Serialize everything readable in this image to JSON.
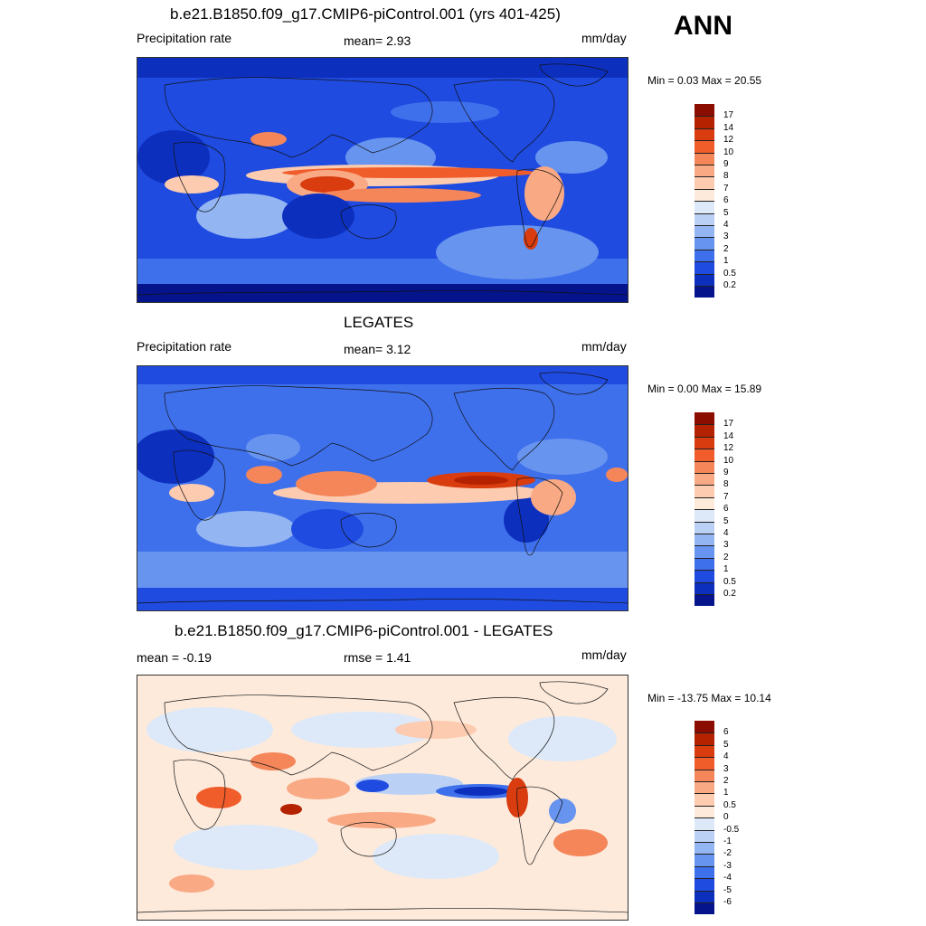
{
  "season": "ANN",
  "panels": [
    {
      "title": "b.e21.B1850.f09_g17.CMIP6-piControl.001 (yrs 401-425)",
      "left_label": "Precipitation rate",
      "center_label": "mean=   2.93",
      "right_label": "mm/day",
      "minmax": "Min =   0.03 Max =  20.55",
      "kind": "precip"
    },
    {
      "title": "LEGATES",
      "left_label": "Precipitation rate",
      "center_label": "mean=   3.12",
      "right_label": "mm/day",
      "minmax": "Min =   0.00 Max =  15.89",
      "kind": "precip"
    },
    {
      "title": "b.e21.B1850.f09_g17.CMIP6-piControl.001 - LEGATES",
      "left_label": "mean =  -0.19",
      "center_label": "rmse =   1.41",
      "right_label": "mm/day",
      "minmax": "Min = -13.75 Max =  10.14",
      "kind": "diff"
    }
  ],
  "colorbars": {
    "precip": {
      "labels": [
        "17",
        "14",
        "12",
        "10",
        "9",
        "8",
        "7",
        "6",
        "5",
        "4",
        "3",
        "2",
        "1",
        "0.5",
        "0.2"
      ],
      "colors": [
        "#8b0d00",
        "#b52200",
        "#d83c0f",
        "#f05c2a",
        "#f58659",
        "#f9a984",
        "#fccbb0",
        "#fdeadb",
        "#dde9f8",
        "#bad1f5",
        "#93b5f2",
        "#6794ef",
        "#3f70ec",
        "#1f4be0",
        "#0d2fbe",
        "#06148c"
      ]
    },
    "diff": {
      "labels": [
        "6",
        "5",
        "4",
        "3",
        "2",
        "1",
        "0.5",
        "0",
        "-0.5",
        "-1",
        "-2",
        "-3",
        "-4",
        "-5",
        "-6"
      ],
      "colors": [
        "#8b0d00",
        "#b52200",
        "#d83c0f",
        "#f05c2a",
        "#f58659",
        "#f9a984",
        "#fccbb0",
        "#fdeadb",
        "#dde9f8",
        "#bad1f5",
        "#93b5f2",
        "#6794ef",
        "#3f70ec",
        "#1f4be0",
        "#0d2fbe",
        "#06148c"
      ]
    }
  }
}
